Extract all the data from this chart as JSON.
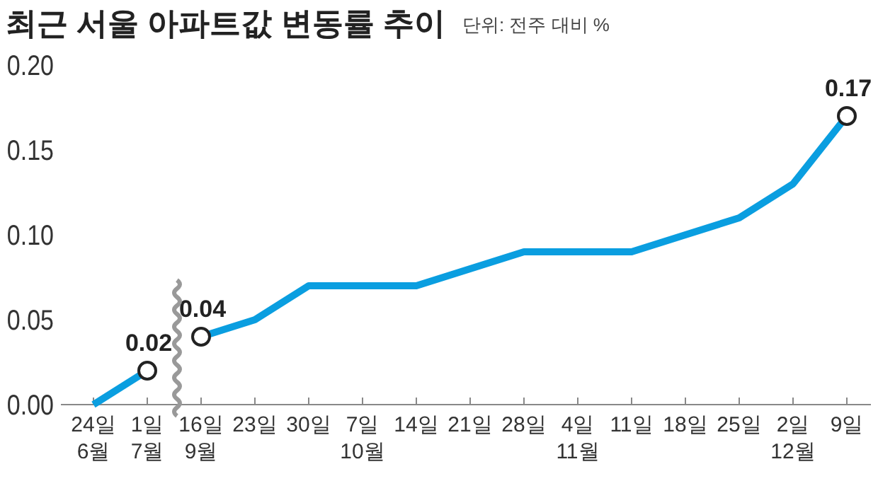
{
  "chart_data": {
    "type": "line",
    "title": "최근 서울 아파트값 변동률 추이",
    "subtitle": "단위: 전주 대비 %",
    "categories": [
      "24일\n6월",
      "1일\n7월",
      "16일\n9월",
      "23일",
      "30일",
      "7일\n10월",
      "14일",
      "21일",
      "28일",
      "4일\n11월",
      "11일",
      "18일",
      "25일",
      "2일\n12월",
      "9일"
    ],
    "series": [
      {
        "color": "#0a9ee0",
        "values": [
          0.0,
          0.02,
          null,
          null,
          null,
          null,
          null,
          null,
          null,
          null,
          null,
          null,
          null,
          null,
          null
        ],
        "value_labels": [
          null,
          "0.02",
          null,
          null,
          null,
          null,
          null,
          null,
          null,
          null,
          null,
          null,
          null,
          null,
          null
        ]
      },
      {
        "color": "#0a9ee0",
        "values": [
          null,
          null,
          0.04,
          0.05,
          0.07,
          0.07,
          0.07,
          0.08,
          0.09,
          0.09,
          0.09,
          0.1,
          0.11,
          0.13,
          0.17
        ],
        "value_labels": [
          null,
          null,
          "0.04",
          null,
          null,
          null,
          null,
          null,
          null,
          null,
          null,
          null,
          null,
          null,
          "0.17"
        ]
      }
    ],
    "ylim": [
      0,
      0.2
    ],
    "yticks": [
      {
        "value": 0,
        "label": "0.00"
      },
      {
        "value": 0.05,
        "label": "0.05"
      },
      {
        "value": 0.1,
        "label": "0.10"
      },
      {
        "value": 0.15,
        "label": "0.15"
      },
      {
        "value": 0.2,
        "label": "0.20"
      }
    ],
    "grid": false,
    "line_style": "solid"
  }
}
